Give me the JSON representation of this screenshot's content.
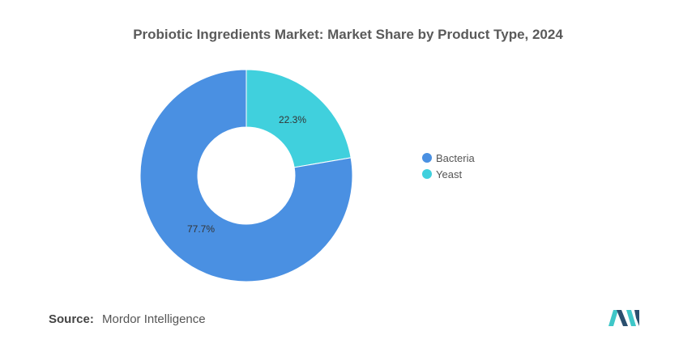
{
  "title": "Probiotic Ingredients Market: Market Share by Product Type, 2024",
  "chart_data": {
    "type": "pie",
    "style": "donut",
    "categories": [
      "Bacteria",
      "Yeast"
    ],
    "values": [
      77.7,
      22.3
    ],
    "data_labels": [
      "77.7%",
      "22.3%"
    ],
    "colors": [
      "#4a90e2",
      "#40d0dd"
    ],
    "legend_position": "right"
  },
  "source": {
    "label": "Source:",
    "text": "Mordor Intelligence"
  },
  "logo": {
    "name": "mordor-intelligence-logo",
    "colors": [
      "#2a4f6e",
      "#3fc7c8"
    ]
  }
}
